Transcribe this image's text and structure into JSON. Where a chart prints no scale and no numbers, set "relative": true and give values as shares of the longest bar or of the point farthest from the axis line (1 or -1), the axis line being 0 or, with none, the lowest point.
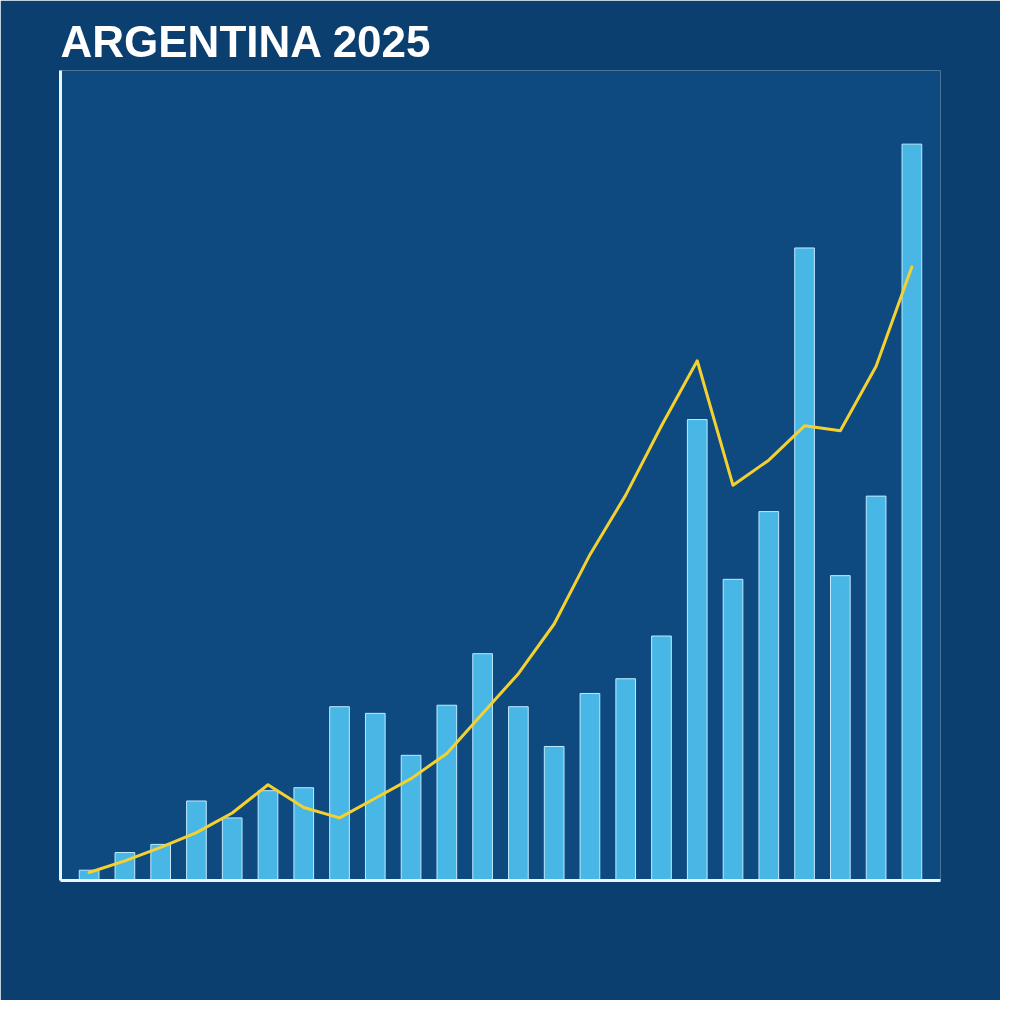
{
  "chart_data": [
    {
      "type": "bar",
      "title": "ARGENTINA 2025",
      "relative": true,
      "categories": [
        null,
        null,
        null,
        null,
        null,
        null,
        null,
        null,
        null,
        null,
        null,
        null,
        null,
        null,
        null,
        null,
        null,
        null,
        null,
        null,
        null,
        null,
        null,
        null
      ],
      "color": "#4fc3f0",
      "values": [
        0.014,
        0.038,
        0.049,
        0.108,
        0.085,
        0.122,
        0.126,
        0.236,
        0.227,
        0.17,
        0.238,
        0.308,
        0.236,
        0.182,
        0.254,
        0.274,
        0.332,
        0.626,
        0.409,
        0.501,
        0.859,
        0.414,
        0.522,
        1
      ]
    },
    {
      "type": "line",
      "relative": true,
      "categories": [
        null,
        null,
        null,
        null,
        null,
        null,
        null,
        null,
        null,
        null,
        null,
        null,
        null,
        null,
        null,
        null,
        null,
        null,
        null,
        null,
        null,
        null,
        null,
        null
      ],
      "color": "#f5d130",
      "values": [
        0.013,
        0.032,
        0.054,
        0.078,
        0.11,
        0.156,
        0.119,
        0.102,
        0.134,
        0.166,
        0.207,
        0.272,
        0.337,
        0.418,
        0.531,
        0.628,
        0.741,
        0.847,
        0.644,
        0.685,
        0.741,
        0.733,
        0.838,
        1
      ]
    }
  ]
}
